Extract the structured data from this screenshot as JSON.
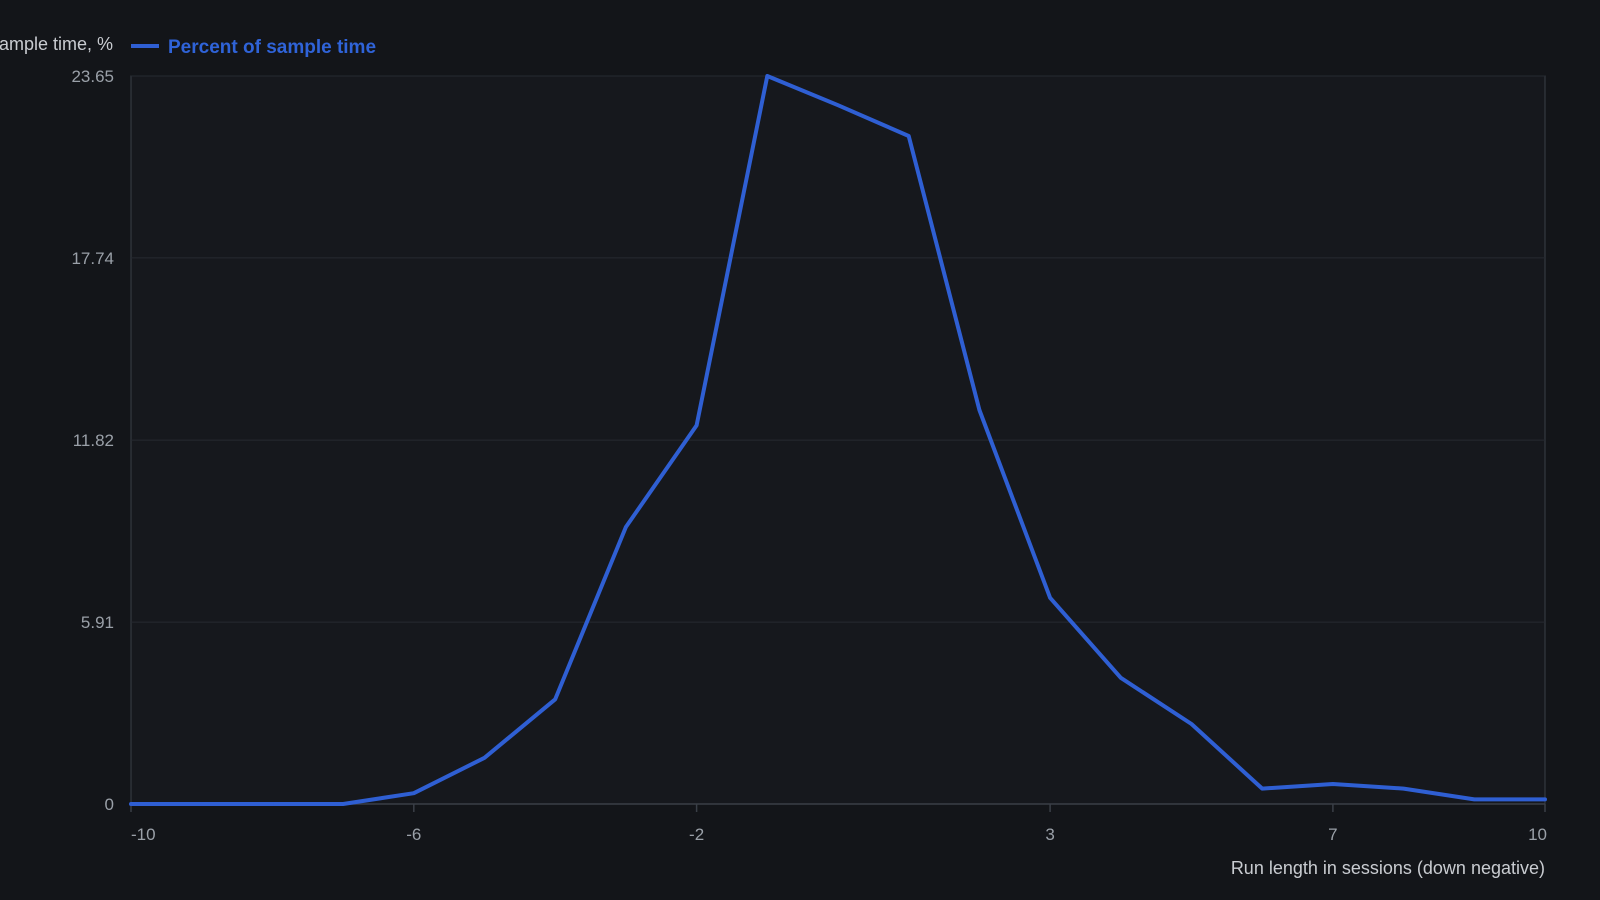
{
  "colors": {
    "background": "#131519",
    "plot_background": "#16181d",
    "grid": "#262a31",
    "axis": "#3a3f47",
    "series": "#2f5fd3"
  },
  "chart_data": {
    "type": "line",
    "title": "",
    "xlabel": "Run length in sessions (down negative)",
    "ylabel": "ample time, %",
    "xlim": [
      -10,
      10
    ],
    "ylim": [
      0,
      23.65
    ],
    "xticks": [
      "-10",
      "-6",
      "-2",
      "3",
      "7",
      "10"
    ],
    "yticks": [
      "0",
      "5.91",
      "11.82",
      "17.74",
      "23.65"
    ],
    "legend": {
      "position": "top-left",
      "entries": [
        "Percent of sample time"
      ]
    },
    "grid": true,
    "x": [
      -10,
      -9,
      -8,
      -7,
      -6,
      -5,
      -4,
      -3,
      -2,
      -1,
      0,
      1,
      2,
      3,
      4,
      5,
      6,
      7,
      8,
      9,
      10
    ],
    "series": [
      {
        "name": "Percent of sample time",
        "values": [
          0,
          0,
          0,
          0,
          0.35,
          1.5,
          3.4,
          9.0,
          12.3,
          23.65,
          22.7,
          21.7,
          12.8,
          6.7,
          4.1,
          2.6,
          0.5,
          0.65,
          0.5,
          0.15,
          0.15
        ]
      }
    ]
  }
}
